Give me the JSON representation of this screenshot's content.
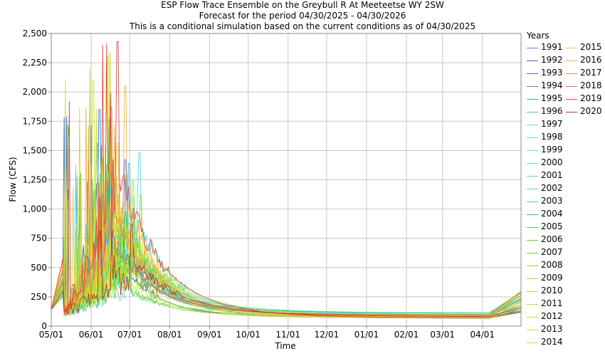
{
  "chart_data": {
    "type": "line",
    "title": "ESP Flow Trace Ensemble on the Greybull R At Meeteetse WY 2SW",
    "subtitle_lines": [
      "Forecast for the period 04/30/2025 - 04/30/2026",
      "This is a conditional simulation based on the current conditions as of 04/30/2025"
    ],
    "xlabel": "Time",
    "ylabel": "Flow (CFS)",
    "ylim": [
      0,
      2500
    ],
    "y_ticks": [
      "0",
      "250",
      "500",
      "750",
      "1,000",
      "1,250",
      "1,500",
      "1,750",
      "2,000",
      "2,250",
      "2,500"
    ],
    "x_ticks": [
      "05/01",
      "06/01",
      "07/01",
      "08/01",
      "09/01",
      "10/01",
      "11/01",
      "12/01",
      "01/01",
      "02/01",
      "03/01",
      "04/01"
    ],
    "grid": true,
    "legend_title": "Years",
    "legend_placement": "right",
    "series": [
      {
        "name": "1991",
        "color": "#6a72d8",
        "peak": 1420
      },
      {
        "name": "1992",
        "color": "#4b5fd2",
        "peak": 1250
      },
      {
        "name": "1993",
        "color": "#3c6fd8",
        "peak": 1850
      },
      {
        "name": "1994",
        "color": "#3f82d6",
        "peak": 1300
      },
      {
        "name": "1995",
        "color": "#3c9ad8",
        "peak": 1560
      },
      {
        "name": "1996",
        "color": "#4fb4e0",
        "peak": 1390
      },
      {
        "name": "1997",
        "color": "#4fe0d8",
        "peak": 1480
      },
      {
        "name": "1998",
        "color": "#4ce6c2",
        "peak": 1160
      },
      {
        "name": "1999",
        "color": "#4ee2a8",
        "peak": 1100
      },
      {
        "name": "2000",
        "color": "#6ed7c4",
        "peak": 760
      },
      {
        "name": "2001",
        "color": "#5cd9b0",
        "peak": 700
      },
      {
        "name": "2002",
        "color": "#62d888",
        "peak": 900
      },
      {
        "name": "2003",
        "color": "#3fd86a",
        "peak": 1050
      },
      {
        "name": "2004",
        "color": "#36cf44",
        "peak": 980
      },
      {
        "name": "2005",
        "color": "#44d238",
        "peak": 1770
      },
      {
        "name": "2006",
        "color": "#58d42a",
        "peak": 1380
      },
      {
        "name": "2007",
        "color": "#6bd81a",
        "peak": 640
      },
      {
        "name": "2008",
        "color": "#82dc22",
        "peak": 1300
      },
      {
        "name": "2009",
        "color": "#98e030",
        "peak": 1240
      },
      {
        "name": "2010",
        "color": "#b2e23c",
        "peak": 1120
      },
      {
        "name": "2011",
        "color": "#c4e22a",
        "peak": 2330
      },
      {
        "name": "2012",
        "color": "#d6e21a",
        "peak": 860
      },
      {
        "name": "2013",
        "color": "#e2de22",
        "peak": 1080
      },
      {
        "name": "2014",
        "color": "#e8d034",
        "peak": 2300
      },
      {
        "name": "2015",
        "color": "#eec44a",
        "peak": 1560
      },
      {
        "name": "2016",
        "color": "#f0b23e",
        "peak": 2050
      },
      {
        "name": "2017",
        "color": "#ec8a4e",
        "peak": 1870
      },
      {
        "name": "2018",
        "color": "#e56a50",
        "peak": 1360
      },
      {
        "name": "2019",
        "color": "#dd4a3c",
        "peak": 2430
      },
      {
        "name": "2020",
        "color": "#c8302a",
        "peak": 870
      }
    ]
  }
}
